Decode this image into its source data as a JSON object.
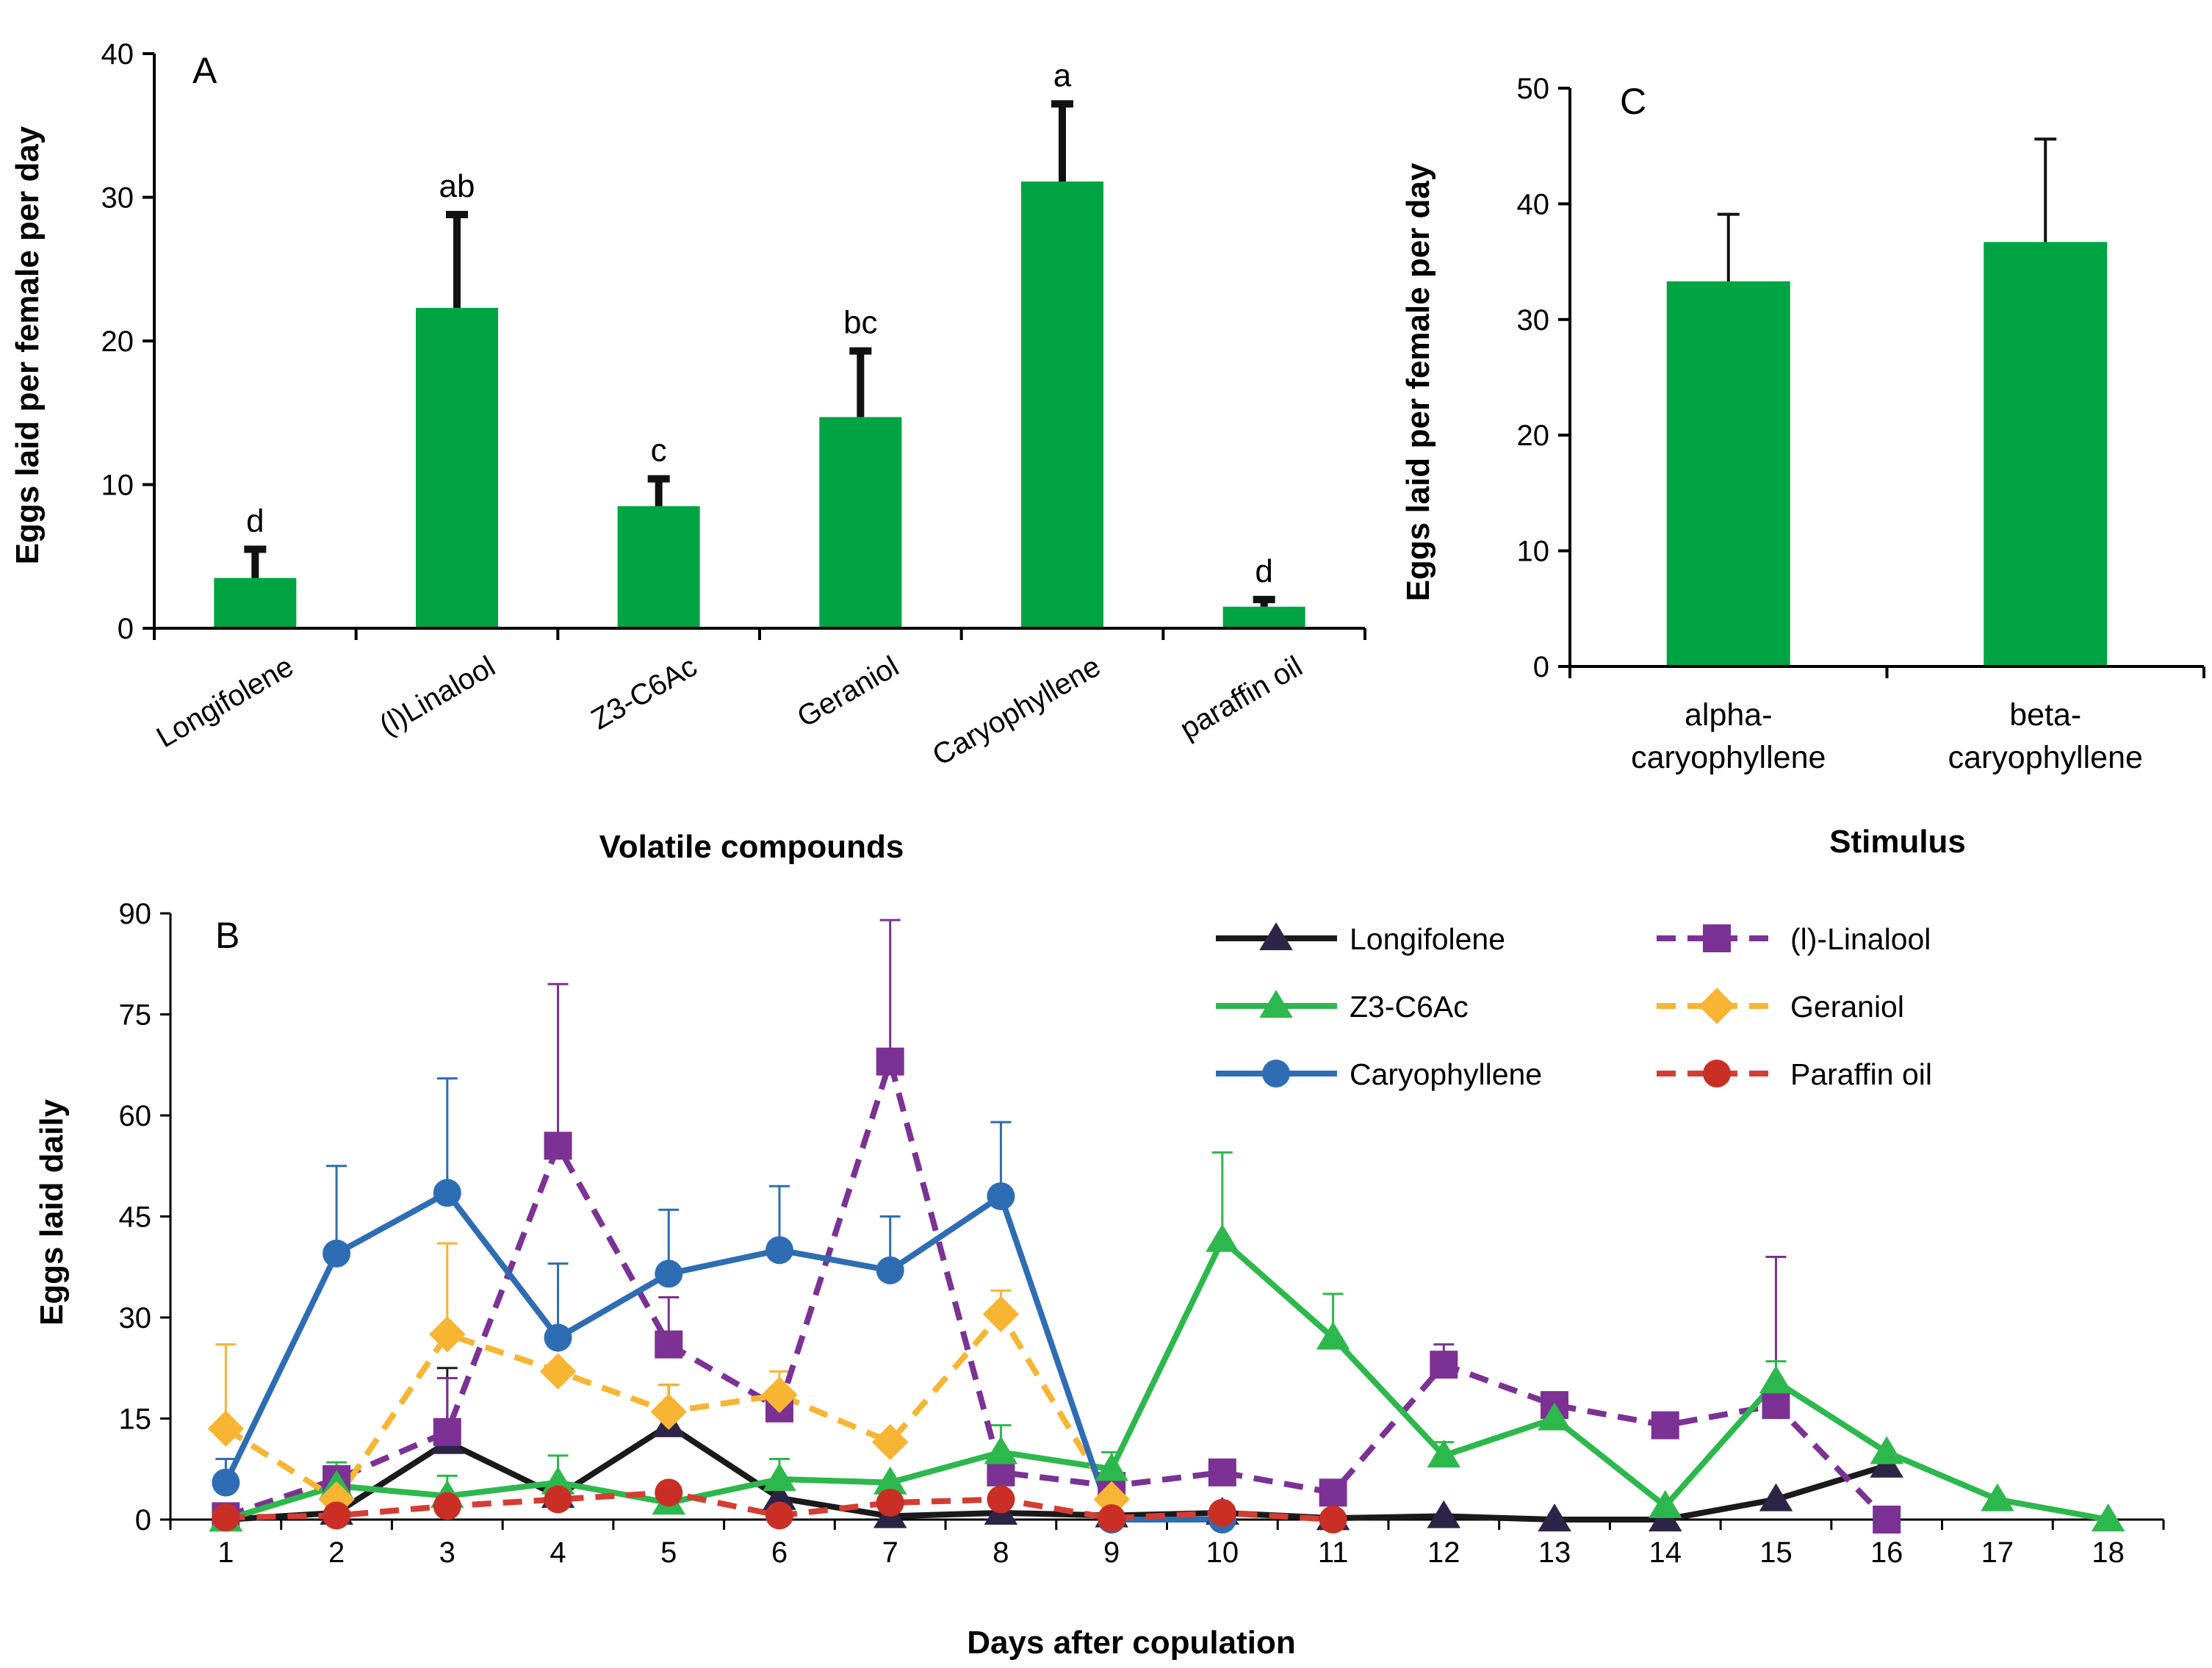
{
  "chart_data": [
    {
      "panel": "A",
      "type": "bar",
      "categories": [
        "Longifolene",
        "(l)Linalool",
        "Z3-C6Ac",
        "Geraniol",
        "Caryophyllene",
        "paraffin oil"
      ],
      "values": [
        3.5,
        22.3,
        8.5,
        14.7,
        31.1,
        1.5
      ],
      "errors": [
        2.0,
        6.5,
        1.9,
        4.6,
        5.4,
        0.5
      ],
      "significance": [
        "d",
        "ab",
        "c",
        "bc",
        "a",
        "d"
      ],
      "xlabel": "Volatile compounds",
      "ylabel": "Eggs laid per female per day",
      "ylim": [
        0,
        40
      ],
      "yticks": [
        0,
        10,
        20,
        30,
        40
      ],
      "bar_color": "#00a443"
    },
    {
      "panel": "C",
      "type": "bar",
      "categories": [
        [
          "alpha-",
          "caryophyllene"
        ],
        [
          "beta-",
          "caryophyllene"
        ]
      ],
      "values": [
        33.3,
        36.7
      ],
      "errors": [
        5.8,
        8.9
      ],
      "xlabel": "Stimulus",
      "ylabel": "Eggs laid per female per day",
      "ylim": [
        0,
        50
      ],
      "yticks": [
        0,
        10,
        20,
        30,
        40,
        50
      ],
      "bar_color": "#00a443"
    },
    {
      "panel": "B",
      "type": "line",
      "xlabel": "Days after copulation",
      "ylabel": "Eggs laid daily",
      "ylim": [
        0,
        90
      ],
      "yticks": [
        0,
        15,
        30,
        45,
        60,
        75,
        90
      ],
      "xlim": [
        0.5,
        18.5
      ],
      "xticks": [
        1,
        2,
        3,
        4,
        5,
        6,
        7,
        8,
        9,
        10,
        11,
        12,
        13,
        14,
        15,
        16,
        17,
        18
      ],
      "series": [
        {
          "name": "Longifolene",
          "color": "#1a1a1a",
          "dash": false,
          "marker": "triangle",
          "marker_color": "#2d2548",
          "x": [
            1,
            2,
            3,
            4,
            5,
            6,
            7,
            8,
            9,
            10,
            11,
            12,
            13,
            14,
            15,
            16
          ],
          "values": [
            0,
            1,
            11.5,
            3.5,
            14,
            3.2,
            0.5,
            1,
            0.6,
            1,
            0.2,
            0.5,
            0,
            0,
            3,
            8
          ],
          "errors": [
            0,
            0,
            11,
            0,
            6,
            0,
            0,
            0,
            0,
            0,
            0,
            0,
            0,
            0,
            0,
            0
          ]
        },
        {
          "name": "(l)-Linalool",
          "color": "#7b3294",
          "dash": true,
          "marker": "square",
          "marker_color": "#7b3294",
          "x": [
            1,
            2,
            3,
            4,
            5,
            6,
            7,
            8,
            9,
            10,
            11,
            12,
            13,
            14,
            15,
            16
          ],
          "values": [
            0.5,
            6,
            13,
            55.5,
            26,
            16.5,
            68,
            7,
            5,
            7,
            4,
            23,
            17,
            14,
            17,
            0
          ],
          "errors": [
            0,
            0,
            8,
            24,
            7,
            0,
            21,
            0,
            0,
            0,
            0,
            3,
            0,
            0,
            22,
            0
          ]
        },
        {
          "name": "Z3-C6Ac",
          "color": "#2db84d",
          "dash": false,
          "marker": "triangle",
          "marker_color": "#2db84d",
          "x": [
            1,
            2,
            3,
            4,
            5,
            6,
            7,
            8,
            9,
            10,
            11,
            12,
            13,
            14,
            15,
            16,
            17,
            18
          ],
          "values": [
            0,
            5,
            3.5,
            5.5,
            2.5,
            6,
            5.5,
            10,
            7.5,
            41.5,
            27,
            9.5,
            15,
            2,
            20.5,
            10,
            3,
            0
          ],
          "errors": [
            0,
            3.5,
            3,
            4,
            0,
            3,
            0,
            4,
            2.5,
            13,
            6.5,
            2,
            0,
            0,
            3,
            0,
            0,
            0
          ]
        },
        {
          "name": "Geraniol",
          "color": "#f7b533",
          "dash": true,
          "marker": "diamond",
          "marker_color": "#f7b533",
          "x": [
            1,
            2,
            3,
            4,
            5,
            6,
            7,
            8,
            9
          ],
          "values": [
            13.5,
            3,
            27.5,
            22,
            16,
            18.5,
            11.5,
            30.5,
            3
          ],
          "errors": [
            12.5,
            0,
            13.5,
            0,
            4,
            3.5,
            0,
            3.5,
            0
          ]
        },
        {
          "name": "Caryophyllene",
          "color": "#2e6db4",
          "dash": false,
          "marker": "circle",
          "marker_color": "#2e6db4",
          "x": [
            1,
            2,
            3,
            4,
            5,
            6,
            7,
            8,
            9,
            10
          ],
          "values": [
            5.5,
            39.5,
            48.5,
            27,
            36.5,
            40,
            37,
            48,
            0,
            0
          ],
          "errors": [
            3.5,
            13,
            17,
            11,
            9.5,
            9.5,
            8,
            11,
            0,
            0
          ]
        },
        {
          "name": "Paraffin oil",
          "color": "#d43d33",
          "dash": true,
          "marker": "circle",
          "marker_color": "#c92f25",
          "x": [
            1,
            2,
            3,
            4,
            5,
            6,
            7,
            8,
            9,
            10,
            11
          ],
          "values": [
            0.3,
            0.6,
            2,
            3,
            4,
            0.6,
            2.5,
            3,
            0.2,
            1,
            0
          ],
          "errors": [
            0,
            0,
            0,
            0,
            0,
            0,
            0,
            0,
            0,
            0,
            0
          ]
        }
      ]
    }
  ]
}
